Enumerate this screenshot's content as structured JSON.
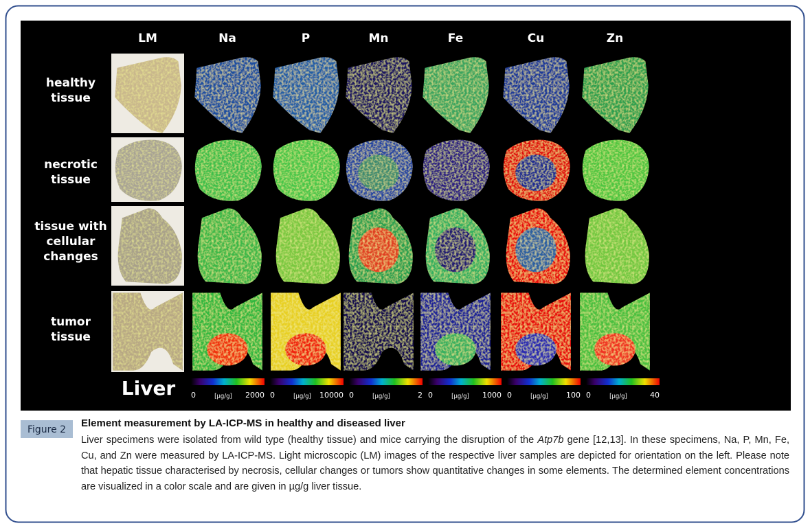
{
  "figure": {
    "columns": [
      "LM",
      "Na",
      "P",
      "Mn",
      "Fe",
      "Cu",
      "Zn"
    ],
    "rows": [
      [
        "healthy",
        "tissue"
      ],
      [
        "necrotic",
        "tissue"
      ],
      [
        "tissue with",
        "cellular",
        "changes"
      ],
      [
        "tumor",
        "tissue"
      ]
    ],
    "organ": "Liver",
    "scales": [
      {
        "min": 0,
        "unit": "[µg/g]",
        "max": 2000
      },
      {
        "min": 0,
        "unit": "[µg/g]",
        "max": 10000
      },
      {
        "min": 0,
        "unit": "[µg/g]",
        "max": 2
      },
      {
        "min": 0,
        "unit": "[µg/g]",
        "max": 1000
      },
      {
        "min": 0,
        "unit": "[µg/g]",
        "max": 100
      },
      {
        "min": 0,
        "unit": "[µg/g]",
        "max": 40
      }
    ]
  },
  "caption": {
    "label": "Figure 2",
    "title": "Element measurement by LA-ICP-MS in healthy and diseased liver",
    "body": [
      "Liver specimens were isolated from wild type (healthy tissue) and mice carrying the disruption of the ",
      "Atp7b",
      " gene [12,13]. In these specimens, Na, P, Mn, Fe, Cu, and Zn were measured by LA-ICP-MS. Light microscopic (LM) images of the respective liver samples are depicted for orientation on the left. Please note that hepatic tissue characterised by necrosis, cellular changes or tumors show quantitative changes in some elements. The determined element concentrations are visualized in a color scale and are given in µg/g liver tissue."
    ]
  }
}
